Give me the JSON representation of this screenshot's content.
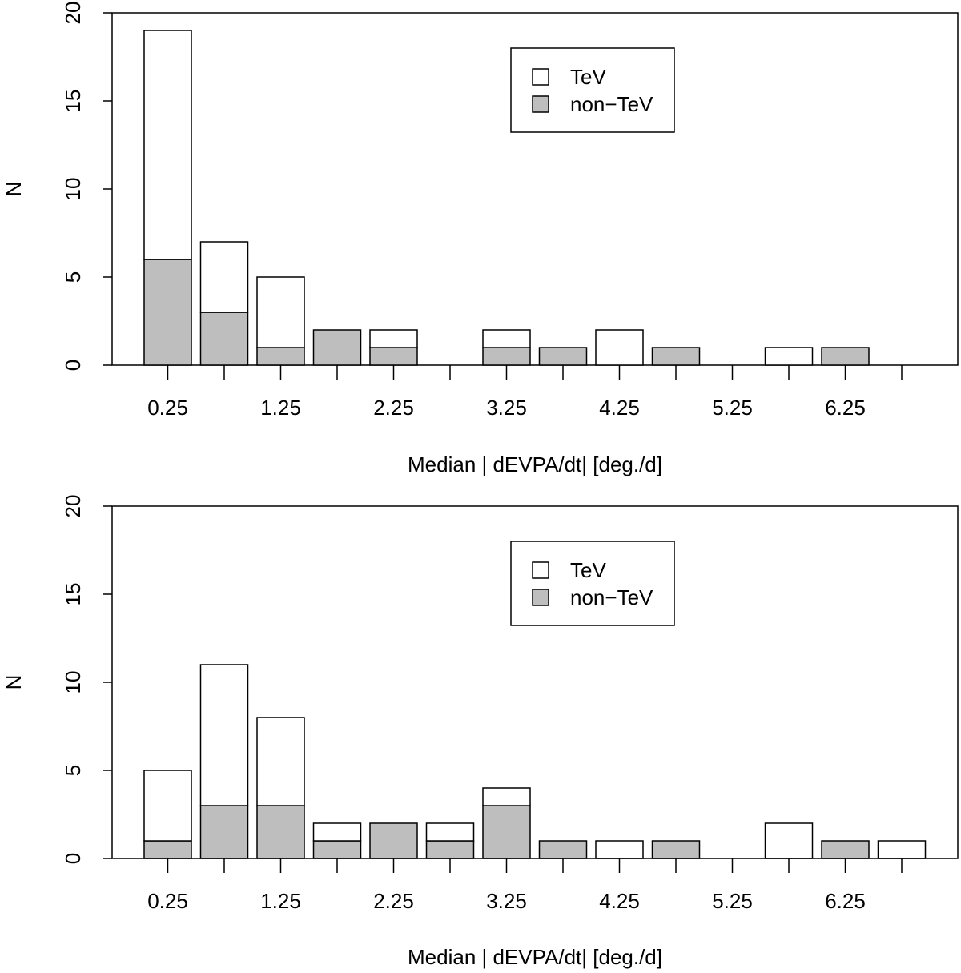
{
  "chart_data": [
    {
      "type": "bar",
      "stacked": true,
      "xlabel": "Median | dEVPA/dt| [deg./d]",
      "ylabel": "N",
      "ylim": [
        0,
        20
      ],
      "yticks": [
        "0",
        "5",
        "10",
        "15",
        "20"
      ],
      "xtick_labels": [
        "0.25",
        "1.25",
        "2.25",
        "3.25",
        "4.25",
        "5.25",
        "6.25"
      ],
      "bin_centers": [
        0.25,
        0.75,
        1.25,
        1.75,
        2.25,
        2.75,
        3.25,
        3.75,
        4.25,
        4.75,
        5.25,
        5.75,
        6.25,
        6.75
      ],
      "legend": {
        "position": "top-right",
        "entries": [
          {
            "label": "TeV",
            "color": "#ffffff"
          },
          {
            "label": "non−TeV",
            "color": "#bebebe"
          }
        ]
      },
      "series": [
        {
          "name": "non-TeV",
          "color": "#bebebe",
          "values": [
            6,
            3,
            1,
            2,
            1,
            0,
            1,
            1,
            0,
            1,
            0,
            0,
            1,
            0
          ]
        },
        {
          "name": "TeV",
          "color": "#ffffff",
          "values": [
            13,
            4,
            4,
            0,
            1,
            0,
            1,
            0,
            2,
            0,
            0,
            1,
            0,
            0
          ]
        }
      ]
    },
    {
      "type": "bar",
      "stacked": true,
      "xlabel": "Median | dEVPA/dt| [deg./d]",
      "ylabel": "N",
      "ylim": [
        0,
        20
      ],
      "yticks": [
        "0",
        "5",
        "10",
        "15",
        "20"
      ],
      "xtick_labels": [
        "0.25",
        "1.25",
        "2.25",
        "3.25",
        "4.25",
        "5.25",
        "6.25"
      ],
      "bin_centers": [
        0.25,
        0.75,
        1.25,
        1.75,
        2.25,
        2.75,
        3.25,
        3.75,
        4.25,
        4.75,
        5.25,
        5.75,
        6.25,
        6.75
      ],
      "legend": {
        "position": "top-right",
        "entries": [
          {
            "label": "TeV",
            "color": "#ffffff"
          },
          {
            "label": "non−TeV",
            "color": "#bebebe"
          }
        ]
      },
      "series": [
        {
          "name": "non-TeV",
          "color": "#bebebe",
          "values": [
            1,
            3,
            3,
            1,
            2,
            1,
            3,
            1,
            0,
            1,
            0,
            0,
            1,
            0
          ]
        },
        {
          "name": "TeV",
          "color": "#ffffff",
          "values": [
            4,
            8,
            5,
            1,
            0,
            1,
            1,
            0,
            1,
            0,
            0,
            2,
            0,
            1
          ]
        }
      ]
    }
  ]
}
